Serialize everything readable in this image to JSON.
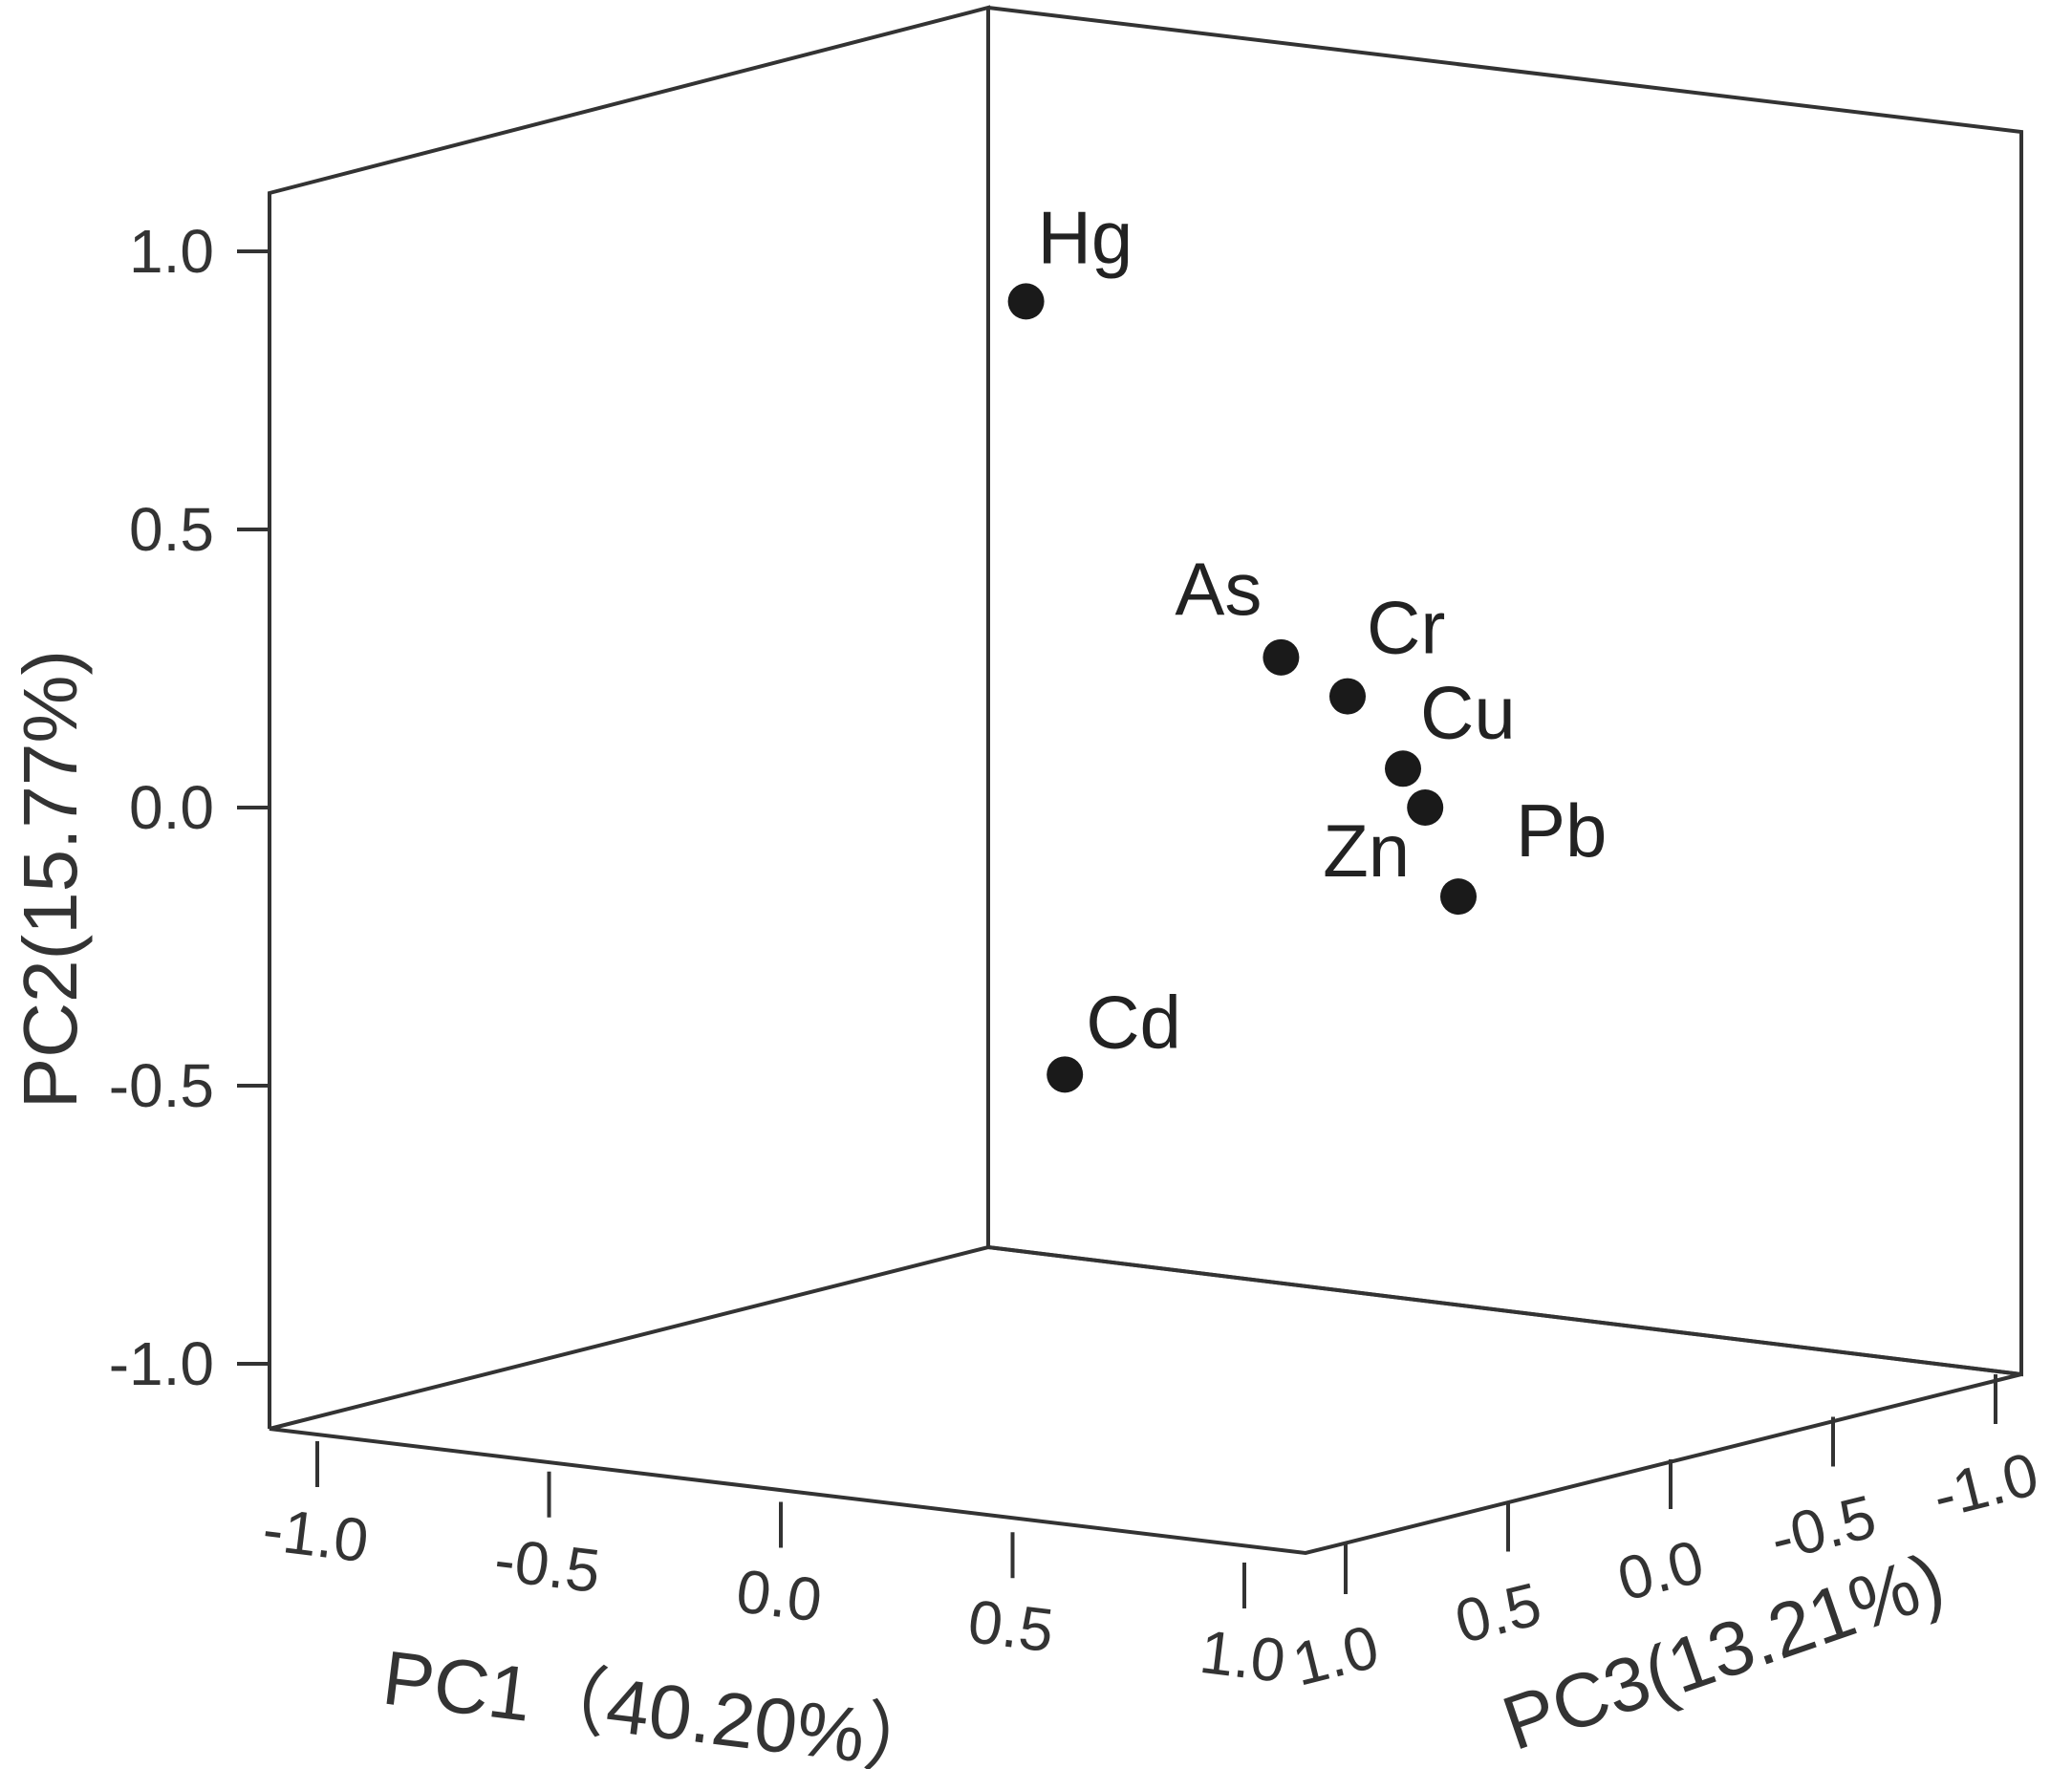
{
  "chart_data": {
    "type": "scatter",
    "projection": "3d",
    "xlabel": "PC1（40.20%）",
    "ylabel": "PC2(15.77%)",
    "zlabel": "PC3(13.21%)",
    "xlim": [
      -1.0,
      1.0
    ],
    "ylim": [
      -1.0,
      1.0
    ],
    "zlim": [
      -1.0,
      1.0
    ],
    "x_ticks": [
      "-1.0",
      "-0.5",
      "0.0",
      "0.5",
      "1.0"
    ],
    "y_ticks": [
      "1.0",
      "0.5",
      "0.0",
      "-0.5",
      "-1.0"
    ],
    "z_ticks": [
      "1.0",
      "0.5",
      "0.0",
      "-0.5",
      "-1.0"
    ],
    "grid": false,
    "legend": "none",
    "marker_color": "#1a1a1a",
    "points": [
      {
        "label": "Hg",
        "x": 0.02,
        "y": 0.91,
        "z": 0.0
      },
      {
        "label": "As",
        "x": 0.48,
        "y": 0.27,
        "z": 0.0
      },
      {
        "label": "Cr",
        "x": 0.6,
        "y": 0.2,
        "z": 0.0
      },
      {
        "label": "Cu",
        "x": 0.7,
        "y": 0.07,
        "z": 0.0
      },
      {
        "label": "Zn",
        "x": 0.74,
        "y": 0.0,
        "z": 0.0
      },
      {
        "label": "Pb",
        "x": 0.8,
        "y": -0.16,
        "z": 0.0
      },
      {
        "label": "Cd",
        "x": 0.09,
        "y": -0.48,
        "z": 0.0
      }
    ]
  }
}
